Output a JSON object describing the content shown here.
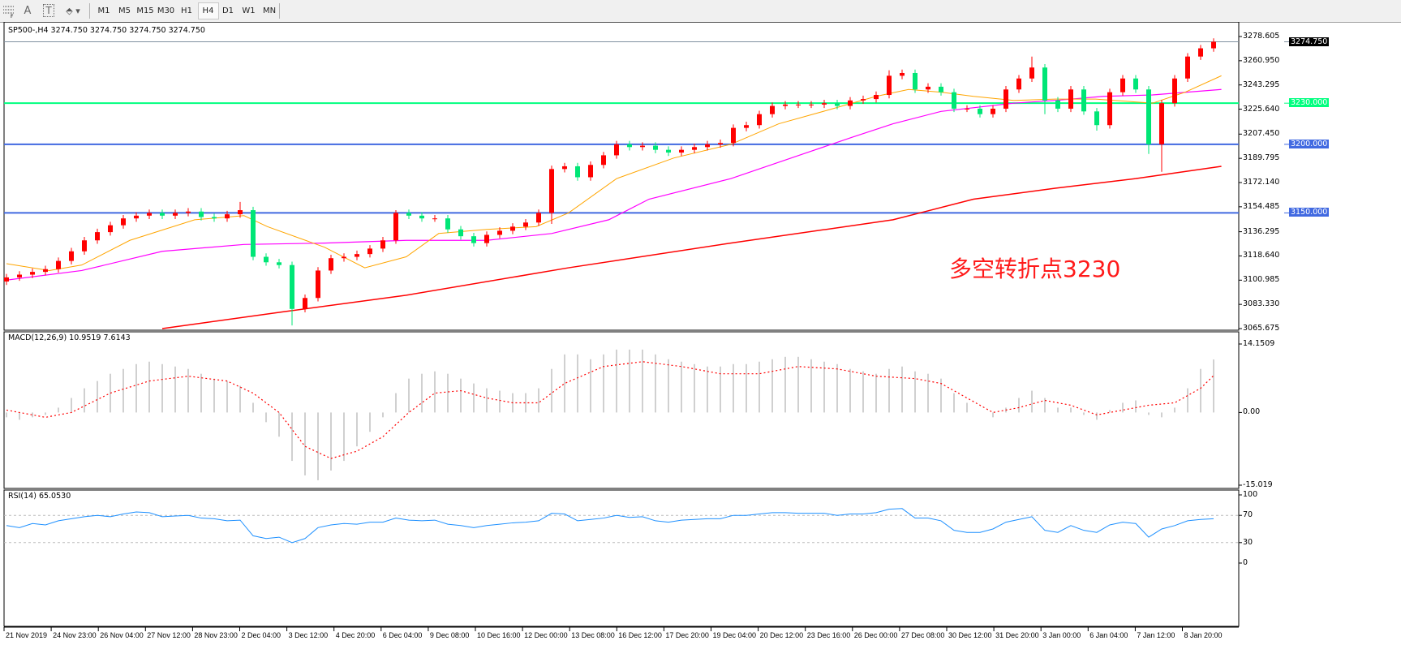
{
  "toolbar": {
    "icons": [
      "grid-icon",
      "text-a-icon",
      "text-label-icon",
      "arrows-icon"
    ],
    "timeframes": [
      "M1",
      "M5",
      "M15",
      "M30",
      "H1",
      "H4",
      "D1",
      "W1",
      "MN"
    ],
    "active_timeframe": "H4"
  },
  "chart_header": "SP500-,H4  3274.750 3274.750 3274.750 3274.750",
  "annotation": "多空转折点3230",
  "colors": {
    "up": "#ff0000",
    "down": "#00e676",
    "ma_fast": "#ffa500",
    "ma_mid": "#ff00ff",
    "ma_slow": "#ff0000",
    "support_green": "#00ff7f",
    "support_blue": "#4169e1",
    "macd_hist": "#c0c0c0",
    "macd_signal": "#ff0000",
    "rsi": "#1e90ff"
  },
  "chart_data": [
    {
      "type": "candlestick",
      "symbol": "SP500-,H4",
      "ylim": [
        3065.675,
        3278.605
      ],
      "y_ticks": [
        "3278.605",
        "3260.950",
        "3243.295",
        "3225.640",
        "3207.450",
        "3189.795",
        "3172.140",
        "3154.485",
        "3136.295",
        "3118.640",
        "3100.985",
        "3083.330",
        "3065.675"
      ],
      "closes": [
        3103,
        3105,
        3107,
        3109,
        3115,
        3122,
        3130,
        3136,
        3141,
        3146,
        3148,
        3150,
        3148,
        3150,
        3151,
        3147,
        3146,
        3149,
        3152,
        3118,
        3114,
        3112,
        3080,
        3088,
        3108,
        3117,
        3118,
        3120,
        3124,
        3130,
        3150,
        3148,
        3146,
        3146,
        3138,
        3133,
        3128,
        3134,
        3137,
        3140,
        3143,
        3150,
        3182,
        3184,
        3176,
        3185,
        3192,
        3200,
        3198,
        3199,
        3196,
        3194,
        3196,
        3198,
        3200,
        3201,
        3212,
        3214,
        3222,
        3228,
        3229,
        3229,
        3229,
        3230,
        3228,
        3232,
        3233,
        3236,
        3250,
        3252,
        3240,
        3242,
        3238,
        3226,
        3226,
        3222,
        3226,
        3240,
        3248,
        3256,
        3232,
        3226,
        3240,
        3224,
        3214,
        3238,
        3248,
        3240,
        3200,
        3230,
        3248,
        3264,
        3270,
        3274.75
      ],
      "first_open": 3100,
      "low_overrides": {
        "22": 3068,
        "89": 3180,
        "88": 3193,
        "80": 3222,
        "84": 3210,
        "42": 3142
      },
      "high_overrides": {
        "79": 3264,
        "18": 3158,
        "68": 3254,
        "30": 3152
      },
      "levels": [
        {
          "value": "3274.750",
          "price": 3274.75,
          "style": "current"
        },
        {
          "value": "3230.000",
          "price": 3230,
          "style": "green"
        },
        {
          "value": "3200.000",
          "price": 3200,
          "style": "blue"
        },
        {
          "value": "3150.000",
          "price": 3150,
          "style": "blue"
        }
      ],
      "ma_fast": [
        [
          0,
          3113
        ],
        [
          3.3,
          3108
        ],
        [
          5.8,
          3112
        ],
        [
          9.5,
          3130
        ],
        [
          14.5,
          3145
        ],
        [
          18.3,
          3148
        ],
        [
          20.1,
          3140
        ],
        [
          24.5,
          3125
        ],
        [
          27.6,
          3110
        ],
        [
          30.8,
          3118
        ],
        [
          33.3,
          3135
        ],
        [
          37,
          3138
        ],
        [
          40.8,
          3140
        ],
        [
          43.3,
          3150
        ],
        [
          47,
          3175
        ],
        [
          51.4,
          3190
        ],
        [
          55.8,
          3200
        ],
        [
          59.5,
          3215
        ],
        [
          63.3,
          3225
        ],
        [
          67,
          3235
        ],
        [
          69.5,
          3240
        ],
        [
          72,
          3238
        ],
        [
          74.5,
          3235
        ],
        [
          77.6,
          3232
        ],
        [
          80.8,
          3233
        ],
        [
          83.9,
          3233
        ],
        [
          88.3,
          3230
        ],
        [
          90.8,
          3238
        ],
        [
          93.6,
          3250
        ]
      ],
      "ma_mid": [
        [
          0,
          3101
        ],
        [
          5.8,
          3108
        ],
        [
          12,
          3122
        ],
        [
          18.3,
          3127
        ],
        [
          24.5,
          3128
        ],
        [
          30.8,
          3130
        ],
        [
          37,
          3130
        ],
        [
          42,
          3135
        ],
        [
          46.4,
          3145
        ],
        [
          49.5,
          3160
        ],
        [
          55.8,
          3175
        ],
        [
          62,
          3195
        ],
        [
          65.1,
          3205
        ],
        [
          68.3,
          3215
        ],
        [
          72,
          3224
        ],
        [
          77.6,
          3230
        ],
        [
          80.8,
          3232
        ],
        [
          84.5,
          3235
        ],
        [
          88.3,
          3236
        ],
        [
          93.6,
          3240
        ]
      ],
      "ma_slow": [
        [
          12,
          3065.7
        ],
        [
          21.4,
          3078
        ],
        [
          30.8,
          3090
        ],
        [
          43.3,
          3110
        ],
        [
          55.8,
          3128
        ],
        [
          68.3,
          3145
        ],
        [
          74.5,
          3160
        ],
        [
          80.8,
          3168
        ],
        [
          87,
          3175
        ],
        [
          93.6,
          3184
        ]
      ]
    },
    {
      "type": "bar+line",
      "title": "MACD(12,26,9) 10.9519 7.6143",
      "ylim": [
        -15.019,
        14.1509
      ],
      "y_ticks": [
        "14.1509",
        "0.00",
        "-15.019"
      ],
      "histogram": [
        -1,
        -1.5,
        -1,
        -0.5,
        1,
        3,
        5,
        6.5,
        8,
        9,
        10,
        10.5,
        10,
        9.5,
        9,
        8,
        7,
        6.5,
        5.5,
        2,
        -2,
        -5,
        -10,
        -13,
        -14,
        -12,
        -10,
        -7,
        -4,
        -1,
        4,
        7,
        8,
        8.5,
        8,
        7,
        6,
        5,
        4.5,
        4,
        4,
        5,
        9,
        12,
        12,
        11,
        12,
        13,
        13,
        13,
        12,
        11,
        10.5,
        10,
        9.5,
        9.5,
        10,
        10,
        10.5,
        11,
        11.5,
        11.5,
        11,
        10.5,
        10,
        9,
        8.5,
        8,
        9,
        9.5,
        8.5,
        8,
        7,
        4,
        2,
        0,
        -1,
        1,
        3,
        4.5,
        3,
        1,
        1,
        -0.5,
        -1.5,
        0.5,
        2,
        2.5,
        -0.5,
        -1,
        1,
        5,
        9,
        10.95
      ],
      "signal": [
        [
          0,
          0.5
        ],
        [
          3,
          -1
        ],
        [
          5,
          0
        ],
        [
          8,
          4
        ],
        [
          11,
          6.5
        ],
        [
          14,
          7.5
        ],
        [
          17,
          6.5
        ],
        [
          19,
          4
        ],
        [
          21,
          0
        ],
        [
          23,
          -7
        ],
        [
          25,
          -9.5
        ],
        [
          27,
          -8
        ],
        [
          29,
          -5
        ],
        [
          31,
          0
        ],
        [
          33,
          4
        ],
        [
          35,
          4.5
        ],
        [
          37,
          3
        ],
        [
          39,
          2
        ],
        [
          41,
          2
        ],
        [
          43,
          6
        ],
        [
          46,
          9.5
        ],
        [
          49,
          10.5
        ],
        [
          52,
          9.5
        ],
        [
          55,
          8
        ],
        [
          58,
          8
        ],
        [
          61,
          9.5
        ],
        [
          64,
          9
        ],
        [
          67,
          7.5
        ],
        [
          70,
          7
        ],
        [
          72,
          6
        ],
        [
          74,
          3
        ],
        [
          76,
          0
        ],
        [
          78,
          1
        ],
        [
          80,
          2.5
        ],
        [
          82,
          1.5
        ],
        [
          84,
          -0.5
        ],
        [
          86,
          0.5
        ],
        [
          88,
          1.5
        ],
        [
          90,
          2
        ],
        [
          92,
          5
        ],
        [
          93,
          7.6143
        ]
      ]
    },
    {
      "type": "line",
      "title": "RSI(14) 65.0530",
      "ylim": [
        0,
        100
      ],
      "y_ticks": [
        "100",
        "70",
        "30",
        "0"
      ],
      "levels": [
        70,
        30
      ],
      "values": [
        55,
        52,
        58,
        56,
        62,
        65,
        68,
        70,
        68,
        72,
        75,
        74,
        68,
        69,
        70,
        66,
        65,
        62,
        63,
        40,
        36,
        38,
        30,
        36,
        52,
        56,
        58,
        57,
        60,
        60,
        66,
        63,
        62,
        63,
        57,
        55,
        52,
        55,
        57,
        59,
        60,
        62,
        73,
        72,
        62,
        64,
        66,
        70,
        67,
        68,
        62,
        60,
        63,
        64,
        65,
        65,
        70,
        70,
        72,
        74,
        74,
        73,
        73,
        73,
        70,
        72,
        72,
        74,
        79,
        80,
        66,
        66,
        62,
        48,
        45,
        45,
        50,
        60,
        64,
        68,
        48,
        45,
        55,
        48,
        45,
        56,
        60,
        58,
        38,
        50,
        55,
        62,
        64,
        65.053
      ]
    }
  ],
  "x_ticks": [
    "21 Nov 2019",
    "24 Nov 23:00",
    "26 Nov 04:00",
    "27 Nov 12:00",
    "28 Nov 23:00",
    "2 Dec 04:00",
    "3 Dec 12:00",
    "4 Dec 20:00",
    "6 Dec 04:00",
    "9 Dec 08:00",
    "10 Dec 16:00",
    "12 Dec 00:00",
    "13 Dec 08:00",
    "16 Dec 12:00",
    "17 Dec 20:00",
    "19 Dec 04:00",
    "20 Dec 12:00",
    "23 Dec 16:00",
    "26 Dec 00:00",
    "27 Dec 08:00",
    "30 Dec 12:00",
    "31 Dec 20:00",
    "3 Jan 00:00",
    "6 Jan 04:00",
    "7 Jan 12:00",
    "8 Jan 20:00"
  ]
}
